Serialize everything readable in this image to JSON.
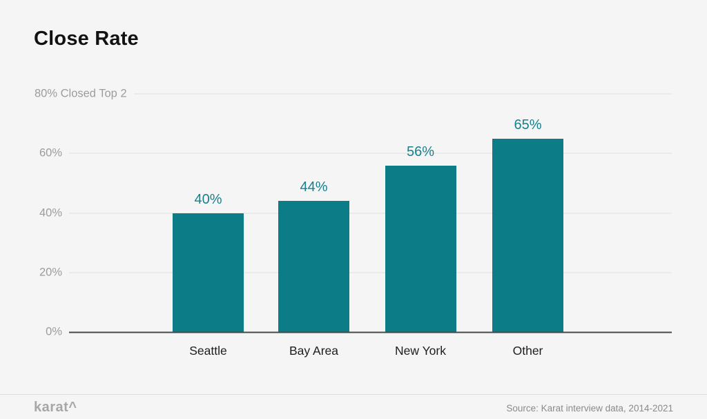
{
  "chart_data": {
    "type": "bar",
    "title": "Close Rate",
    "categories": [
      "Seattle",
      "Bay Area",
      "New York",
      "Other"
    ],
    "values": [
      40,
      44,
      56,
      65
    ],
    "value_labels": [
      "40%",
      "44%",
      "56%",
      "65%"
    ],
    "xlabel": "",
    "ylabel": "",
    "ylim": [
      0,
      80
    ],
    "yticks": [
      {
        "value": 80,
        "label": "80% Closed Top 2"
      },
      {
        "value": 60,
        "label": "60%"
      },
      {
        "value": 40,
        "label": "40%"
      },
      {
        "value": 20,
        "label": "20%"
      },
      {
        "value": 0,
        "label": "0%"
      }
    ],
    "grid": true,
    "legend": false,
    "bar_color": "#0c7c87",
    "value_label_color": "#17808e",
    "tick_label_color": "#9c9c9c",
    "axis_line_color": "#474747"
  },
  "footer": {
    "logo": "karat^",
    "source": "Source: Karat interview data, 2014-2021"
  }
}
